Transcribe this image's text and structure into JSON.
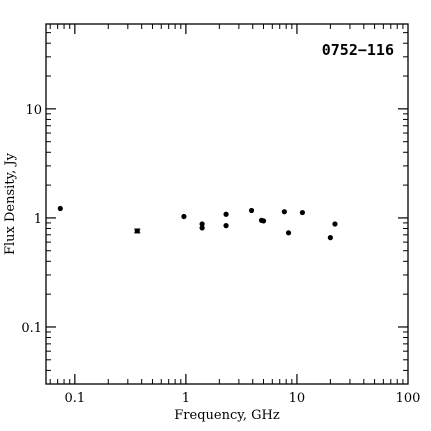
{
  "chart_data": {
    "type": "scatter",
    "title": "0752−116",
    "xlabel": "Frequency, GHz",
    "ylabel": "Flux Density, Jy",
    "xscale": "log",
    "yscale": "log",
    "xlim": [
      0.055,
      100
    ],
    "ylim": [
      0.03,
      60
    ],
    "xticks": [
      {
        "value": 0.1,
        "label": "0.1"
      },
      {
        "value": 1,
        "label": "1"
      },
      {
        "value": 10,
        "label": "10"
      },
      {
        "value": 100,
        "label": "100"
      }
    ],
    "yticks": [
      {
        "value": 0.1,
        "label": "0.1"
      },
      {
        "value": 1,
        "label": "1"
      },
      {
        "value": 10,
        "label": "10"
      }
    ],
    "grid": false,
    "legend": "none",
    "marker_color": "#000000",
    "points": [
      {
        "x": 0.074,
        "y": 1.22
      },
      {
        "x": 0.365,
        "y": 0.76,
        "yerr": 0.03
      },
      {
        "x": 0.96,
        "y": 1.03
      },
      {
        "x": 1.4,
        "y": 0.88
      },
      {
        "x": 1.4,
        "y": 0.81
      },
      {
        "x": 2.3,
        "y": 1.08
      },
      {
        "x": 2.3,
        "y": 0.85
      },
      {
        "x": 3.9,
        "y": 1.17
      },
      {
        "x": 4.8,
        "y": 0.95
      },
      {
        "x": 5.0,
        "y": 0.94
      },
      {
        "x": 7.7,
        "y": 1.14
      },
      {
        "x": 8.4,
        "y": 0.73
      },
      {
        "x": 11.2,
        "y": 1.12
      },
      {
        "x": 20.0,
        "y": 0.66
      },
      {
        "x": 22.0,
        "y": 0.88
      }
    ]
  }
}
